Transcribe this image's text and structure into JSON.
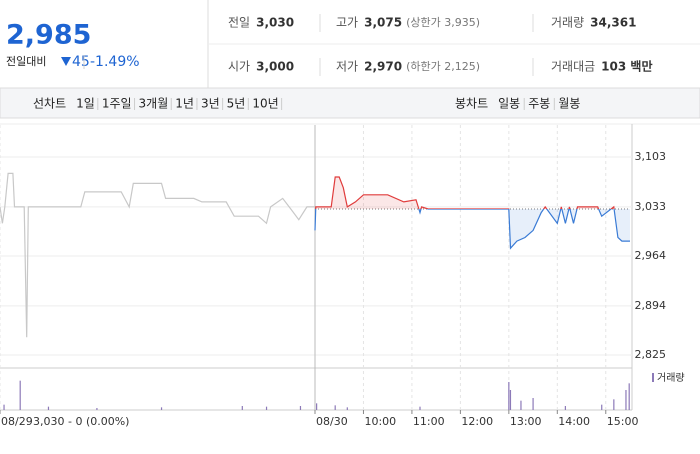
{
  "header": {
    "price": "2,985",
    "change_label": "전일대비",
    "change": "45",
    "change_pct": "-1.49%",
    "stats": [
      {
        "label": "전일",
        "value": "3,030"
      },
      {
        "label": "고가",
        "value": "3,075",
        "color": "#e0242c",
        "note": "(상한가 3,935)"
      },
      {
        "label": "거래량",
        "value": "34,361"
      },
      {
        "label": "시가",
        "value": "3,000",
        "color": "#1e64d2"
      },
      {
        "label": "저가",
        "value": "2,970",
        "color": "#1e64d2",
        "note": "(하한가 2,125)"
      },
      {
        "label": "거래대금",
        "value": "103 백만"
      }
    ]
  },
  "tabs": {
    "line_label": "선차트",
    "line_periods": [
      "1일",
      "1주일",
      "3개월",
      "1년",
      "3년",
      "5년",
      "10년"
    ],
    "candle_label": "봉차트",
    "candle_periods": [
      "일봉",
      "주봉",
      "월봉"
    ]
  },
  "chart_data": {
    "type": "line",
    "xlim": [
      0,
      780
    ],
    "ylim": [
      2811,
      3148
    ],
    "yticks": [
      {
        "value": 3103,
        "label": "3,103"
      },
      {
        "value": 3033,
        "label": "3,033"
      },
      {
        "value": 2964,
        "label": "2,964"
      },
      {
        "value": 2894,
        "label": "2,894"
      },
      {
        "value": 2825,
        "label": "2,825"
      }
    ],
    "xticks": [
      {
        "value": 0,
        "label": "08/29"
      },
      {
        "value": 390,
        "label": "08/30"
      },
      {
        "value": 450,
        "label": "10:00"
      },
      {
        "value": 510,
        "label": "11:00"
      },
      {
        "value": 570,
        "label": "12:00"
      },
      {
        "value": 630,
        "label": "13:00"
      },
      {
        "value": 690,
        "label": "14:00"
      },
      {
        "value": 750,
        "label": "15:00"
      }
    ],
    "previous_note": "3,030 - 0 (0.00%)",
    "reference": 3030,
    "previous": {
      "color": "#c8c8c8",
      "x": [
        0,
        3,
        6,
        10,
        16,
        18,
        30,
        33,
        35,
        60,
        100,
        105,
        150,
        160,
        165,
        200,
        205,
        240,
        250,
        280,
        290,
        320,
        330,
        335,
        350,
        360,
        370,
        380,
        390
      ],
      "values": [
        3033,
        3010,
        3033,
        3080,
        3080,
        3033,
        3033,
        2850,
        3033,
        3033,
        3033,
        3054,
        3054,
        3033,
        3066,
        3066,
        3045,
        3045,
        3040,
        3040,
        3020,
        3020,
        3010,
        3033,
        3045,
        3030,
        3015,
        3033,
        3033
      ]
    },
    "today": {
      "color_up": "#e03c3c",
      "color_down": "#3a7bd5",
      "x": [
        390,
        391,
        410,
        415,
        420,
        425,
        430,
        440,
        450,
        480,
        500,
        515,
        520,
        522,
        530,
        630,
        632,
        640,
        650,
        660,
        670,
        675,
        690,
        695,
        700,
        705,
        710,
        715,
        740,
        745,
        760,
        765,
        770,
        780
      ],
      "values": [
        3000,
        3033,
        3033,
        3075,
        3075,
        3060,
        3033,
        3040,
        3050,
        3050,
        3040,
        3043,
        3025,
        3033,
        3030,
        3030,
        2975,
        2985,
        2990,
        3000,
        3025,
        3033,
        3010,
        3033,
        3010,
        3033,
        3010,
        3033,
        3033,
        3020,
        3033,
        2990,
        2985,
        2985
      ]
    },
    "volume": {
      "name": "거래량",
      "color": "#8c7ab8",
      "ylim": [
        0,
        3000
      ],
      "x": [
        5,
        25,
        60,
        120,
        200,
        300,
        330,
        372,
        392,
        415,
        430,
        520,
        630,
        632,
        645,
        660,
        700,
        745,
        760,
        775,
        779
      ],
      "values": [
        400,
        2200,
        250,
        150,
        200,
        300,
        250,
        300,
        500,
        350,
        200,
        250,
        2100,
        1500,
        700,
        900,
        300,
        400,
        800,
        1500,
        2000
      ]
    }
  }
}
